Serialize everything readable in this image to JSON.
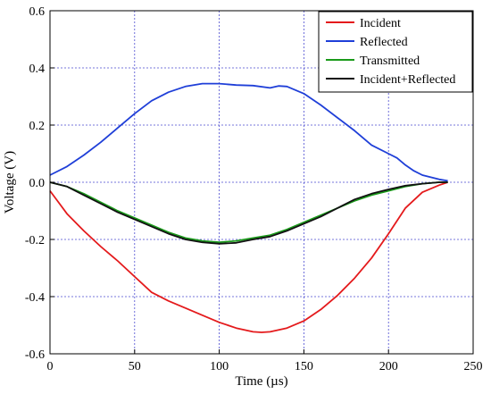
{
  "chart_data": {
    "type": "line",
    "title": "",
    "xlabel": "Time (µs)",
    "ylabel": "Voltage (V)",
    "xlim": [
      0,
      250
    ],
    "ylim": [
      -0.6,
      0.6
    ],
    "xticks": [
      0,
      50,
      100,
      150,
      200,
      250
    ],
    "yticks": [
      -0.6,
      -0.4,
      -0.2,
      0.0,
      0.2,
      0.4,
      0.6
    ],
    "ytick_labels": [
      "-0.6",
      "-0.4",
      "-0.2",
      "0.0",
      "0.2",
      "0.4",
      "0.6"
    ],
    "grid": true,
    "legend_position": "top-right",
    "series": [
      {
        "name": "Incident",
        "color": "#e41a1c",
        "x": [
          0,
          5,
          10,
          20,
          30,
          40,
          50,
          60,
          70,
          80,
          90,
          100,
          110,
          120,
          125,
          130,
          140,
          150,
          160,
          170,
          180,
          190,
          200,
          210,
          220,
          230,
          235
        ],
        "y": [
          -0.03,
          -0.07,
          -0.11,
          -0.17,
          -0.225,
          -0.275,
          -0.33,
          -0.385,
          -0.415,
          -0.44,
          -0.465,
          -0.49,
          -0.51,
          -0.523,
          -0.525,
          -0.523,
          -0.51,
          -0.485,
          -0.445,
          -0.395,
          -0.335,
          -0.265,
          -0.18,
          -0.09,
          -0.035,
          -0.01,
          0.0
        ]
      },
      {
        "name": "Reflected",
        "color": "#1f3fd8",
        "x": [
          0,
          10,
          20,
          30,
          40,
          50,
          60,
          70,
          80,
          90,
          100,
          110,
          120,
          130,
          135,
          140,
          150,
          160,
          170,
          180,
          190,
          200,
          205,
          210,
          215,
          220,
          230,
          235
        ],
        "y": [
          0.025,
          0.055,
          0.095,
          0.14,
          0.19,
          0.24,
          0.285,
          0.315,
          0.335,
          0.345,
          0.345,
          0.34,
          0.338,
          0.33,
          0.337,
          0.335,
          0.31,
          0.27,
          0.225,
          0.18,
          0.13,
          0.1,
          0.085,
          0.06,
          0.04,
          0.025,
          0.01,
          0.005
        ]
      },
      {
        "name": "Transmitted",
        "color": "#1a9a1a",
        "x": [
          0,
          10,
          20,
          30,
          40,
          50,
          60,
          70,
          80,
          90,
          100,
          110,
          120,
          130,
          140,
          150,
          160,
          170,
          180,
          190,
          200,
          210,
          220,
          230,
          235
        ],
        "y": [
          0.0,
          -0.015,
          -0.04,
          -0.07,
          -0.1,
          -0.125,
          -0.15,
          -0.175,
          -0.195,
          -0.205,
          -0.21,
          -0.205,
          -0.195,
          -0.185,
          -0.165,
          -0.14,
          -0.115,
          -0.09,
          -0.065,
          -0.045,
          -0.03,
          -0.015,
          -0.005,
          0.0,
          0.0
        ]
      },
      {
        "name": "Incident+Reflected",
        "color": "#111111",
        "x": [
          0,
          10,
          20,
          30,
          40,
          50,
          60,
          70,
          80,
          90,
          100,
          110,
          120,
          130,
          140,
          150,
          160,
          170,
          180,
          190,
          200,
          210,
          220,
          230,
          235
        ],
        "y": [
          0.0,
          -0.015,
          -0.045,
          -0.075,
          -0.105,
          -0.13,
          -0.155,
          -0.18,
          -0.2,
          -0.21,
          -0.215,
          -0.212,
          -0.2,
          -0.19,
          -0.17,
          -0.145,
          -0.12,
          -0.09,
          -0.06,
          -0.04,
          -0.025,
          -0.012,
          -0.005,
          0.0,
          0.0
        ]
      }
    ]
  }
}
